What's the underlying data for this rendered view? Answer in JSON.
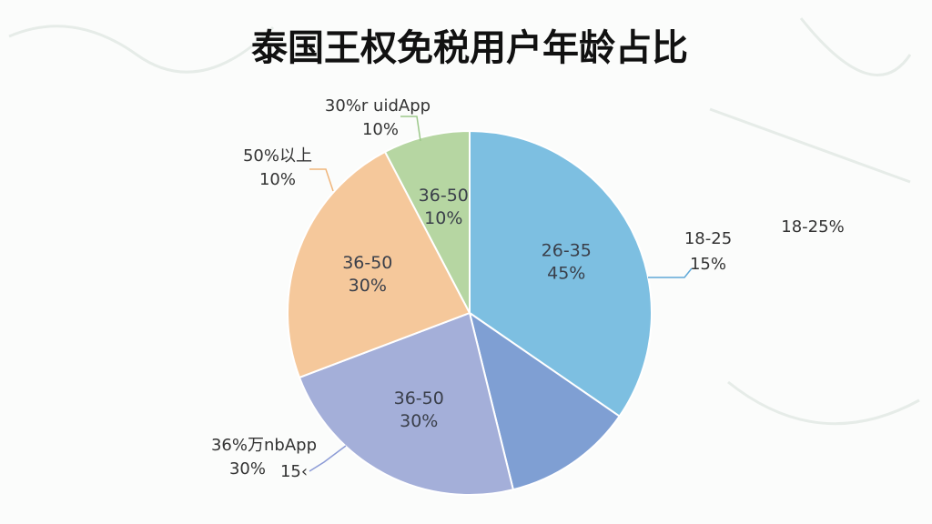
{
  "chart_data": {
    "type": "pie",
    "title": "泰国王权免税用户年龄占比",
    "categories": [
      "26-35",
      null,
      "36-50",
      "36-50",
      "36-50"
    ],
    "values": [
      45,
      15,
      30,
      30,
      10
    ],
    "value_labels": [
      "45%",
      null,
      "30%",
      "30%",
      "10%"
    ],
    "colors": [
      "#7dbfe1",
      "#7f9fd3",
      "#a4afd9",
      "#f5c89b",
      "#b6d6a2"
    ],
    "annotations": [
      "30%r uidApp",
      "10%",
      "50%以上",
      "10%",
      "18-25",
      "15%",
      "18-25%",
      "36%万nbApp",
      "30%",
      "15‹"
    ]
  }
}
